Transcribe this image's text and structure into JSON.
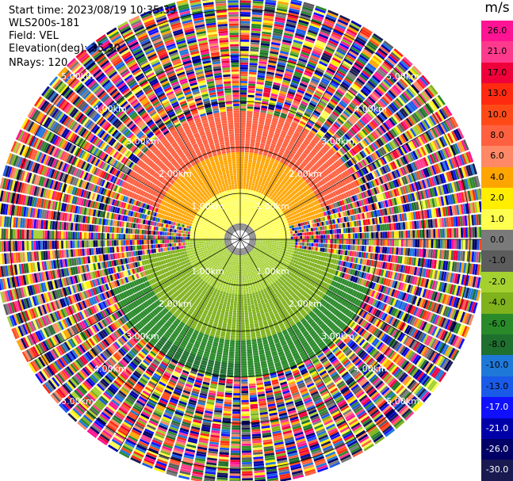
{
  "header": {
    "start_time": "Start time: 2023/08/19 10:35:39",
    "instrument": "WLS200s-181",
    "field": "Field: VEL",
    "elevation": "Elevation(deg): 35.30",
    "nrays": "NRays: 120"
  },
  "chart_data": {
    "type": "heatmap",
    "projection": "polar-ppi",
    "field": "VEL",
    "units": "m/s",
    "nrays": 120,
    "elevation_deg": 35.3,
    "range_ring_labels": [
      "1.00km",
      "2.00km",
      "3.00km",
      "4.00km",
      "5.00km"
    ],
    "range_rings_km": [
      1,
      2,
      3,
      4,
      5
    ],
    "max_range_km": 5.3,
    "valid_range_km": 3.0,
    "grid": true,
    "colorbar": {
      "title": "m/s",
      "ticks": [
        "26.0",
        "21.0",
        "17.0",
        "13.0",
        "10.0",
        "8.0",
        "6.0",
        "4.0",
        "2.0",
        "1.0",
        "0.0",
        "-1.0",
        "-2.0",
        "-4.0",
        "-6.0",
        "-8.0",
        "-10.0",
        "-13.0",
        "-17.0",
        "-21.0",
        "-26.0",
        "-30.0"
      ],
      "colors": [
        "#ff1493",
        "#ff3a8c",
        "#f0003a",
        "#ff2a10",
        "#ff4a18",
        "#ff6040",
        "#ff8866",
        "#ffa500",
        "#ffee00",
        "#ffff50",
        "#7a7a7a",
        "#5c5c5c",
        "#a4d030",
        "#7fb21c",
        "#2a8a2a",
        "#1f6f2f",
        "#1e78d8",
        "#1a5ae8",
        "#1010ff",
        "#0000a8",
        "#000066",
        "#1a1a50"
      ]
    },
    "field_zones": [
      {
        "from_km": 0.0,
        "to_km": 0.35,
        "bearing_from": 0,
        "bearing_to": 360,
        "velocity": 0.0
      },
      {
        "from_km": 0.35,
        "to_km": 1.1,
        "bearing_from": 270,
        "bearing_to": 90,
        "velocity": 1.0
      },
      {
        "from_km": 1.1,
        "to_km": 1.9,
        "bearing_from": 285,
        "bearing_to": 75,
        "velocity": 4.0
      },
      {
        "from_km": 1.9,
        "to_km": 2.8,
        "bearing_from": 290,
        "bearing_to": 70,
        "velocity": 8.0
      },
      {
        "from_km": 0.35,
        "to_km": 1.2,
        "bearing_from": 90,
        "bearing_to": 270,
        "velocity": -2.0
      },
      {
        "from_km": 1.2,
        "to_km": 2.2,
        "bearing_from": 100,
        "bearing_to": 260,
        "velocity": -4.0
      },
      {
        "from_km": 2.2,
        "to_km": 3.0,
        "bearing_from": 110,
        "bearing_to": 250,
        "velocity": -6.0
      },
      {
        "from_km": 2.7,
        "to_km": 3.0,
        "bearing_from": 180,
        "bearing_to": 220,
        "velocity": -8.0
      }
    ],
    "beyond_valid_range": "noise"
  }
}
